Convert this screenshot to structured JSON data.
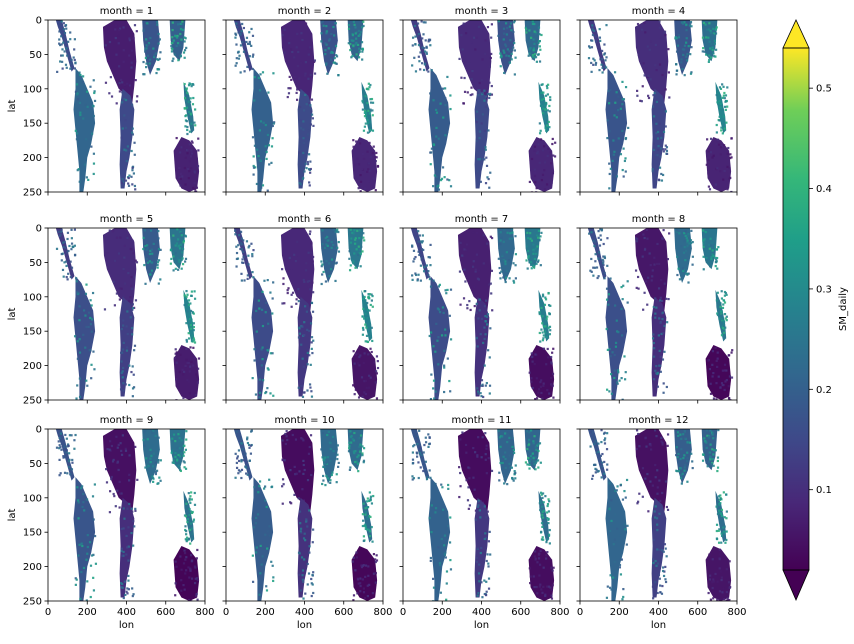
{
  "chart_data": {
    "type": "heatmap",
    "layout": "facet-grid 3x4",
    "facet_var": "month",
    "facets": [
      {
        "title": "month = 1"
      },
      {
        "title": "month = 2"
      },
      {
        "title": "month = 3"
      },
      {
        "title": "month = 4"
      },
      {
        "title": "month = 5"
      },
      {
        "title": "month = 6"
      },
      {
        "title": "month = 7"
      },
      {
        "title": "month = 8"
      },
      {
        "title": "month = 9"
      },
      {
        "title": "month = 10"
      },
      {
        "title": "month = 11"
      },
      {
        "title": "month = 12"
      }
    ],
    "xlabel": "lon",
    "ylabel": "lat",
    "xlim": [
      0,
      800
    ],
    "ylim": [
      250,
      0
    ],
    "x_ticks": [
      "0",
      "200",
      "400",
      "600",
      "800"
    ],
    "y_ticks": [
      "0",
      "50",
      "100",
      "150",
      "200",
      "250"
    ],
    "colorbar": {
      "label": "SM_daily",
      "colormap": "viridis",
      "extend": "both",
      "range": [
        0.02,
        0.54
      ],
      "ticks": [
        "0.1",
        "0.2",
        "0.3",
        "0.4",
        "0.5"
      ]
    },
    "grid": false
  },
  "colors": {
    "viridis_low": "#440154",
    "viridis_mid": "#21918c",
    "viridis_high": "#fde725"
  }
}
